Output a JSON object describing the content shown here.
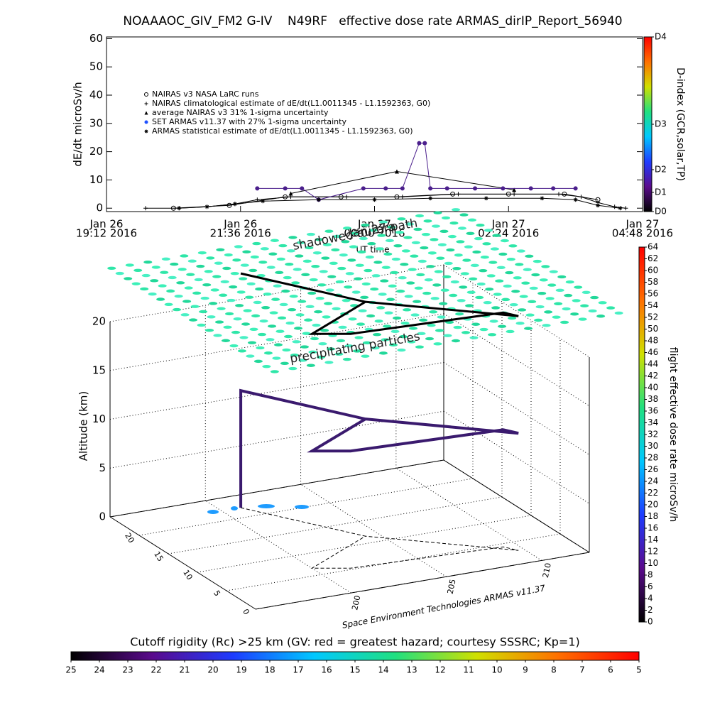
{
  "chart_data": [
    {
      "type": "line",
      "title": "NOAAAOC_GIV_FM2 G-IV    N49RF   effective dose rate ARMAS_dirIP_Report_56940",
      "ylabel": "dE/dt microSv/h",
      "xlabel": "UT time",
      "xlim": [
        19.2,
        28.8
      ],
      "xticks": [
        {
          "value": 19.2,
          "label": [
            "Jan 26",
            "19:12 2016"
          ]
        },
        {
          "value": 21.6,
          "label": [
            "Jan 26",
            "21:36 2016"
          ]
        },
        {
          "value": 24,
          "label": [
            "Jan 27",
            "00:00 2016"
          ]
        },
        {
          "value": 26.4,
          "label": [
            "Jan 27",
            "02:24 2016"
          ]
        },
        {
          "value": 28.8,
          "label": [
            "Jan 27",
            "04:48 2016"
          ]
        }
      ],
      "ylim": [
        -1.2,
        60.6
      ],
      "yticks": [
        0,
        10,
        20,
        30,
        40,
        50,
        60
      ],
      "series": [
        {
          "name": "NAIRAS v3 NASA LaRC runs",
          "color": "#000000",
          "marker": "circle",
          "x": [
            20.4,
            21.4,
            22.4,
            23.4,
            24.4,
            25.4,
            26.4,
            27.4,
            28.0
          ],
          "values": [
            0,
            1,
            4,
            4,
            4,
            5,
            5,
            5,
            3
          ]
        },
        {
          "name": "NAIRAS climatological estimate of dE/dt(L1.0011345 - L1.1592363, G0)",
          "color": "#000000",
          "marker": "plus",
          "x": [
            19.9,
            20.5,
            21.0,
            21.5,
            21.9,
            22.5,
            23.5,
            24.5,
            25.5,
            26.5,
            27.3,
            27.7,
            28.0,
            28.3,
            28.5
          ],
          "values": [
            0,
            0,
            0.5,
            1.5,
            3,
            4,
            4,
            4,
            5,
            5,
            5,
            4,
            2,
            0.5,
            0
          ]
        },
        {
          "name": "average NAIRAS v3 31% 1-sigma uncertainty",
          "color": "#000000",
          "marker": "triangle",
          "x": [
            22.5,
            24.4,
            26.5
          ],
          "values": [
            5.2,
            13,
            6.5
          ]
        },
        {
          "name": "SET ARMAS v11.37 with 27% 1-sigma uncertainty",
          "color": "#4b1f8c",
          "legend_color": "#1e50ff",
          "marker": "dot",
          "x": [
            21.9,
            22.4,
            22.7,
            23.0,
            23.8,
            24.2,
            24.5,
            24.8,
            24.9,
            25.0,
            25.3,
            25.8,
            26.3,
            26.8,
            27.2,
            27.6
          ],
          "values": [
            7,
            7,
            7,
            3,
            7,
            7,
            7,
            23,
            23,
            7,
            7,
            7,
            7,
            7,
            7,
            7
          ]
        },
        {
          "name": "ARMAS statistical estimate of dE/dt(L1.0011345 - L1.1592363, G0)",
          "color": "#000000",
          "marker": "asterisk",
          "x": [
            20.5,
            21.0,
            21.5,
            22.0,
            23.0,
            24.0,
            25.0,
            26.0,
            27.0,
            27.6,
            28.0,
            28.4
          ],
          "values": [
            0,
            0.5,
            1.5,
            2.5,
            3,
            3,
            3.5,
            3.5,
            3.5,
            3,
            1,
            0
          ]
        }
      ]
    },
    {
      "type": "colorbar",
      "orientation": "vertical",
      "label": "D-index (GCR,solar,TP)",
      "lim": [
        0,
        1
      ],
      "ticks": [
        {
          "value": 0,
          "label": "D0"
        },
        {
          "value": 0.11,
          "label": "D1"
        },
        {
          "value": 0.24,
          "label": "D2"
        },
        {
          "value": 0.5,
          "label": "D3"
        },
        {
          "value": 1,
          "label": "D4"
        }
      ],
      "colors": [
        "#000000",
        "#5a0a8c",
        "#1e3cff",
        "#00c8ff",
        "#20e080",
        "#d0e000",
        "#ff7000",
        "#ff0000"
      ]
    },
    {
      "type": "line3d",
      "xlabel": "Space Environment Technologies ARMAS v11.37",
      "zlabel": "Altitude (km)",
      "xlim": [
        195,
        212.5
      ],
      "ylim": [
        0,
        25
      ],
      "zlim": [
        0,
        24
      ],
      "xticks": [
        200,
        205,
        210
      ],
      "yticks": [
        0,
        5,
        10,
        15,
        20
      ],
      "zticks": [
        0,
        5,
        10,
        15,
        20
      ],
      "annotations": [
        "shadowed aurora",
        "Jan 27 path",
        "precipitating particles"
      ],
      "color": "#3a1a6e",
      "x": [
        201,
        201,
        204.3,
        200,
        201.6,
        209.3,
        209.7,
        204.3
      ],
      "y": [
        22.2,
        22.2,
        11.6,
        6.7,
        5.3,
        4.3,
        3.0,
        11.6
      ],
      "z": [
        0,
        12,
        12,
        12,
        12,
        12,
        12,
        12
      ]
    },
    {
      "type": "colorbar",
      "orientation": "vertical",
      "label": "flight effective dose rate microSv/h",
      "lim": [
        0,
        64
      ],
      "ticks": [
        0,
        2,
        4,
        6,
        8,
        10,
        12,
        14,
        16,
        18,
        20,
        22,
        24,
        26,
        28,
        30,
        32,
        34,
        36,
        38,
        40,
        42,
        44,
        46,
        48,
        50,
        52,
        54,
        56,
        58,
        60,
        62,
        64
      ],
      "colors": [
        "#000000",
        "#5a0a8c",
        "#1e3cff",
        "#00c8ff",
        "#20e080",
        "#d0e000",
        "#ff7000",
        "#ff0000"
      ]
    },
    {
      "type": "colorbar",
      "orientation": "horizontal",
      "label": "Cutoff rigidity (Rc) >25 km (GV: red = greatest hazard; courtesy SSSRC; Kp=1)",
      "lim": [
        25,
        5
      ],
      "ticks": [
        25,
        24,
        23,
        22,
        21,
        20,
        19,
        18,
        17,
        16,
        15,
        14,
        13,
        12,
        11,
        10,
        9,
        8,
        7,
        6,
        5
      ],
      "colors": [
        "#000000",
        "#5a0a8c",
        "#1e3cff",
        "#00c8ff",
        "#20e080",
        "#d0e000",
        "#ff7000",
        "#ff0000"
      ]
    }
  ]
}
